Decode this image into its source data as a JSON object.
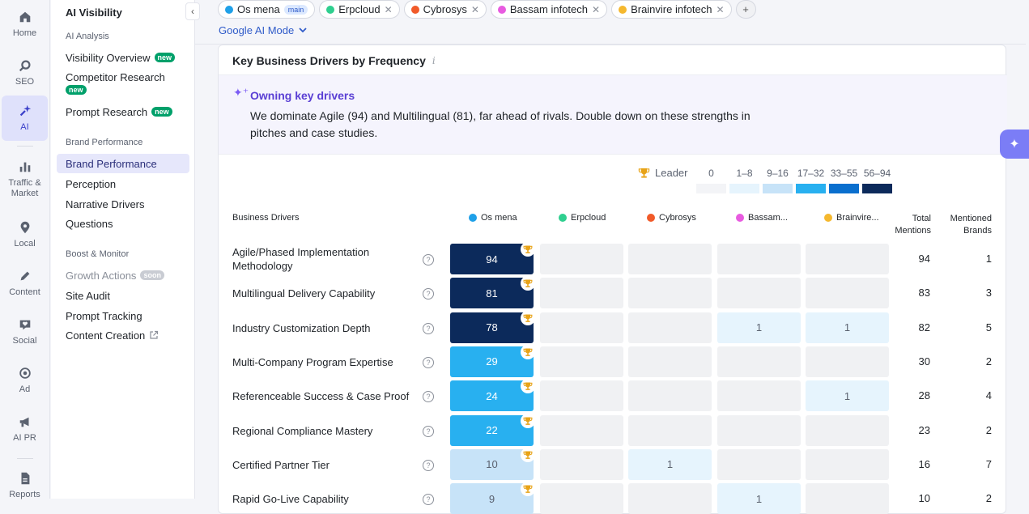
{
  "rail": [
    {
      "label": "Home",
      "icon": "home-icon"
    },
    {
      "label": "SEO",
      "icon": "seo-icon"
    },
    {
      "label": "AI",
      "icon": "ai-sparkle-icon"
    },
    {
      "label": "Traffic &\nMarket",
      "icon": "bar-chart-icon"
    },
    {
      "label": "Local",
      "icon": "map-pin-icon"
    },
    {
      "label": "Content",
      "icon": "pen-icon"
    },
    {
      "label": "Social",
      "icon": "heart-chat-icon"
    },
    {
      "label": "Ad",
      "icon": "target-icon"
    },
    {
      "label": "AI PR",
      "icon": "megaphone-icon"
    },
    {
      "label": "Reports",
      "icon": "document-icon"
    }
  ],
  "sidebar": {
    "title": "AI Visibility",
    "sections": {
      "analysis": "AI Analysis",
      "brand": "Brand Performance",
      "boost": "Boost & Monitor"
    },
    "items": {
      "visibility_overview": "Visibility Overview",
      "competitor_research": "Competitor Research",
      "prompt_research": "Prompt Research",
      "brand_performance": "Brand Performance",
      "perception": "Perception",
      "narrative_drivers": "Narrative Drivers",
      "questions": "Questions",
      "growth_actions": "Growth Actions",
      "site_audit": "Site Audit",
      "prompt_tracking": "Prompt Tracking",
      "content_creation": "Content Creation"
    },
    "badge_new": "new",
    "badge_soon": "soon"
  },
  "chips": [
    {
      "name": "Os mena",
      "color": "#1fa0e8",
      "tag": "main"
    },
    {
      "name": "Erpcloud",
      "color": "#2fcf8f"
    },
    {
      "name": "Cybrosys",
      "color": "#f15a29"
    },
    {
      "name": "Bassam infotech",
      "color": "#e85be0"
    },
    {
      "name": "Brainvire infotech",
      "color": "#f5b82e"
    }
  ],
  "mode": "Google AI Mode",
  "card": {
    "title": "Key Business Drivers by Frequency",
    "info": "i",
    "insight_title": "Owning key drivers",
    "insight_text": "We dominate Agile (94) and Multilingual (81), far ahead of rivals. Double down on these strengths in pitches and case studies."
  },
  "legend": {
    "leader": "Leader",
    "ranges": [
      "0",
      "1–8",
      "9–16",
      "17–32",
      "33–55",
      "56–94"
    ],
    "colors": [
      "#f3f4f7",
      "#e6f4fd",
      "#c7e3f8",
      "#28b0f0",
      "#0a6fce",
      "#0c2a5b"
    ]
  },
  "table": {
    "col_driver": "Business Drivers",
    "brands": [
      {
        "label": "Os mena",
        "color": "#1fa0e8"
      },
      {
        "label": "Erpcloud",
        "color": "#2fcf8f"
      },
      {
        "label": "Cybrosys",
        "color": "#f15a29"
      },
      {
        "label": "Bassam...",
        "color": "#e85be0"
      },
      {
        "label": "Brainvire...",
        "color": "#f5b82e"
      }
    ],
    "col_total": "Total\nMentions",
    "col_brands": "Mentioned\nBrands",
    "rows": [
      {
        "driver": "Agile/Phased Implementation Methodology",
        "values": [
          "94",
          "",
          "",
          "",
          ""
        ],
        "total": "94",
        "brands": "1"
      },
      {
        "driver": "Multilingual Delivery Capability",
        "values": [
          "81",
          "",
          "",
          "",
          ""
        ],
        "total": "83",
        "brands": "3"
      },
      {
        "driver": "Industry Customization Depth",
        "values": [
          "78",
          "",
          "",
          "1",
          "1"
        ],
        "total": "82",
        "brands": "5"
      },
      {
        "driver": "Multi-Company Program Expertise",
        "values": [
          "29",
          "",
          "",
          "",
          ""
        ],
        "total": "30",
        "brands": "2"
      },
      {
        "driver": "Referenceable Success & Case Proof",
        "values": [
          "24",
          "",
          "",
          "",
          "1"
        ],
        "total": "28",
        "brands": "4"
      },
      {
        "driver": "Regional Compliance Mastery",
        "values": [
          "22",
          "",
          "",
          "",
          ""
        ],
        "total": "23",
        "brands": "2"
      },
      {
        "driver": "Certified Partner Tier",
        "values": [
          "10",
          "",
          "1",
          "",
          ""
        ],
        "total": "16",
        "brands": "7"
      },
      {
        "driver": "Rapid Go-Live Capability",
        "values": [
          "9",
          "",
          "",
          "1",
          ""
        ],
        "total": "10",
        "brands": "2"
      }
    ]
  }
}
